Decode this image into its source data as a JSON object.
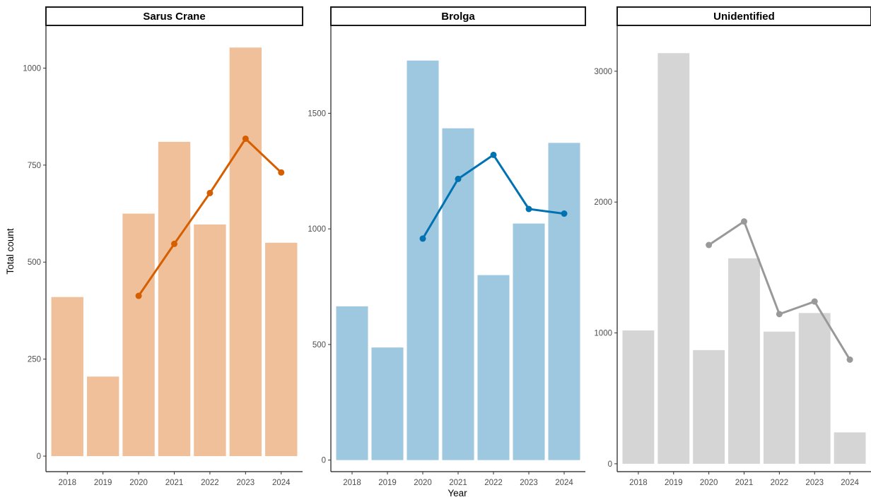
{
  "chart_data": {
    "type": "bar",
    "xlabel": "Year",
    "ylabel": "Total count",
    "categories": [
      "2018",
      "2019",
      "2020",
      "2021",
      "2022",
      "2023",
      "2024"
    ],
    "grid": false,
    "panels": [
      {
        "title": "Sarus Crane",
        "bar_color": "#f0c09a",
        "line_color": "#d55e00",
        "ylim": [
          -40,
          1110
        ],
        "yticks": [
          0,
          250,
          500,
          750,
          1000
        ],
        "bars": [
          410,
          205,
          625,
          810,
          597,
          1053,
          550
        ],
        "line": [
          null,
          null,
          413,
          547,
          678,
          818,
          731
        ]
      },
      {
        "title": "Brolga",
        "bar_color": "#9ec7e0",
        "line_color": "#0072b2",
        "ylim": [
          -50,
          1880
        ],
        "yticks": [
          0,
          500,
          1000,
          1500
        ],
        "bars": [
          665,
          487,
          1728,
          1435,
          800,
          1023,
          1372
        ],
        "line": [
          null,
          null,
          958,
          1216,
          1320,
          1086,
          1066
        ]
      },
      {
        "title": "Unidentified",
        "bar_color": "#d5d5d5",
        "line_color": "#999999",
        "ylim": [
          -60,
          3350
        ],
        "yticks": [
          0,
          1000,
          2000,
          3000
        ],
        "bars": [
          1019,
          3138,
          869,
          1570,
          1010,
          1152,
          240
        ],
        "line": [
          null,
          null,
          1672,
          1852,
          1144,
          1240,
          796
        ]
      }
    ]
  }
}
